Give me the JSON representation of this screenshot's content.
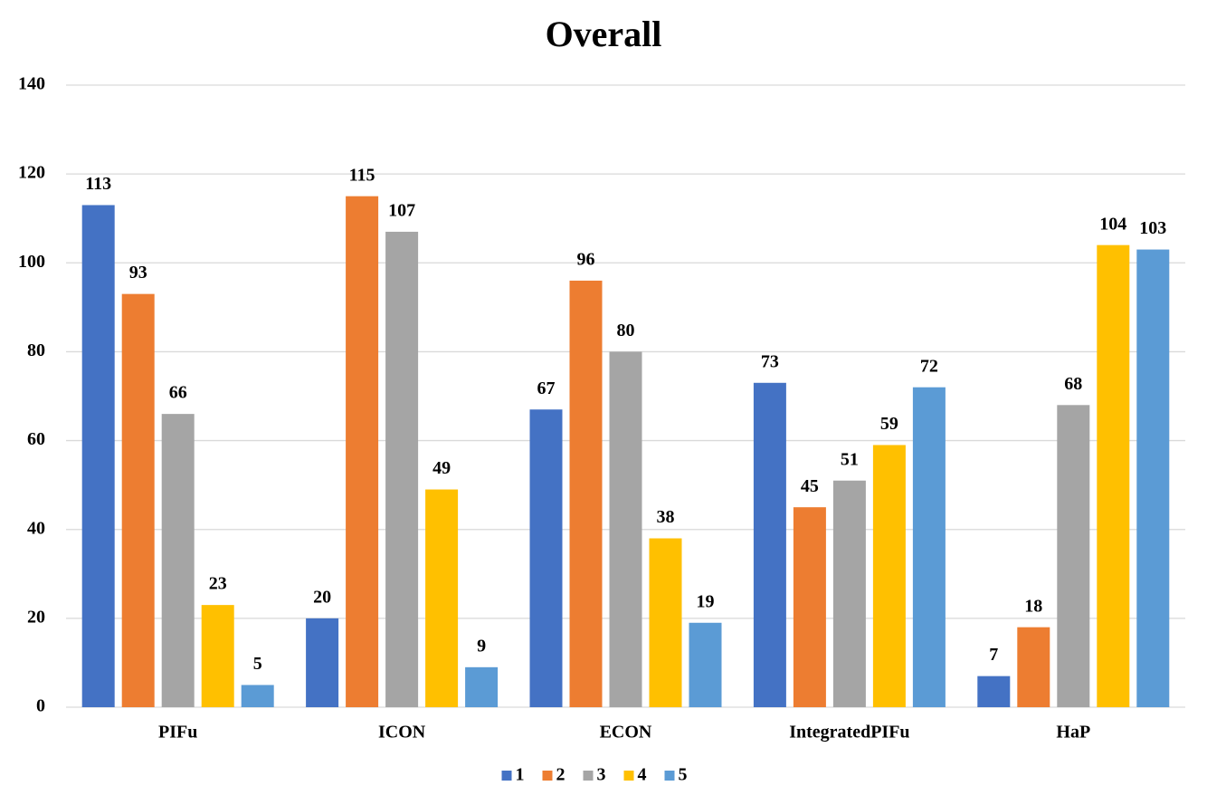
{
  "chart_data": {
    "type": "bar",
    "title": "Overall",
    "categories": [
      "PIFu",
      "ICON",
      "ECON",
      "IntegratedPIFu",
      "HaP"
    ],
    "series": [
      {
        "name": "1",
        "color": "#4472c4",
        "values": [
          113,
          20,
          67,
          73,
          7
        ]
      },
      {
        "name": "2",
        "color": "#ed7d31",
        "values": [
          93,
          115,
          96,
          45,
          18
        ]
      },
      {
        "name": "3",
        "color": "#a5a5a5",
        "values": [
          66,
          107,
          80,
          51,
          68
        ]
      },
      {
        "name": "4",
        "color": "#ffc000",
        "values": [
          23,
          49,
          38,
          59,
          104
        ]
      },
      {
        "name": "5",
        "color": "#5b9bd5",
        "values": [
          5,
          9,
          19,
          72,
          103
        ]
      }
    ],
    "ylim": [
      0,
      140
    ],
    "yticks": [
      0,
      20,
      40,
      60,
      80,
      100,
      120,
      140
    ],
    "grid": true,
    "legend": "bottom"
  }
}
